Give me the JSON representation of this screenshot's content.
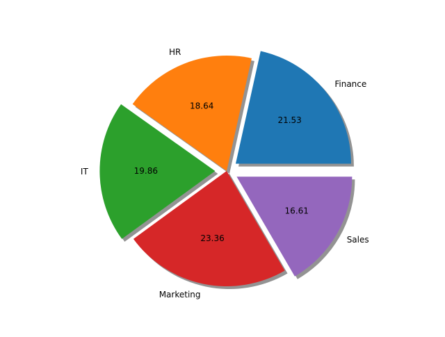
{
  "chart_data": {
    "type": "pie",
    "categories": [
      "Finance",
      "HR",
      "IT",
      "Marketing",
      "Sales"
    ],
    "values": [
      21.53,
      18.64,
      19.86,
      23.36,
      16.61
    ],
    "value_labels": [
      "21.53",
      "18.64",
      "19.86",
      "23.36",
      "16.61"
    ],
    "exploded": [
      true,
      false,
      true,
      false,
      true
    ],
    "shadow": true,
    "start_angle_deg": 0,
    "direction": "counterclockwise",
    "colors": [
      "#1f77b4",
      "#ff7f0e",
      "#2ca02c",
      "#d62728",
      "#9467bd"
    ],
    "legend": "none",
    "title": ""
  }
}
